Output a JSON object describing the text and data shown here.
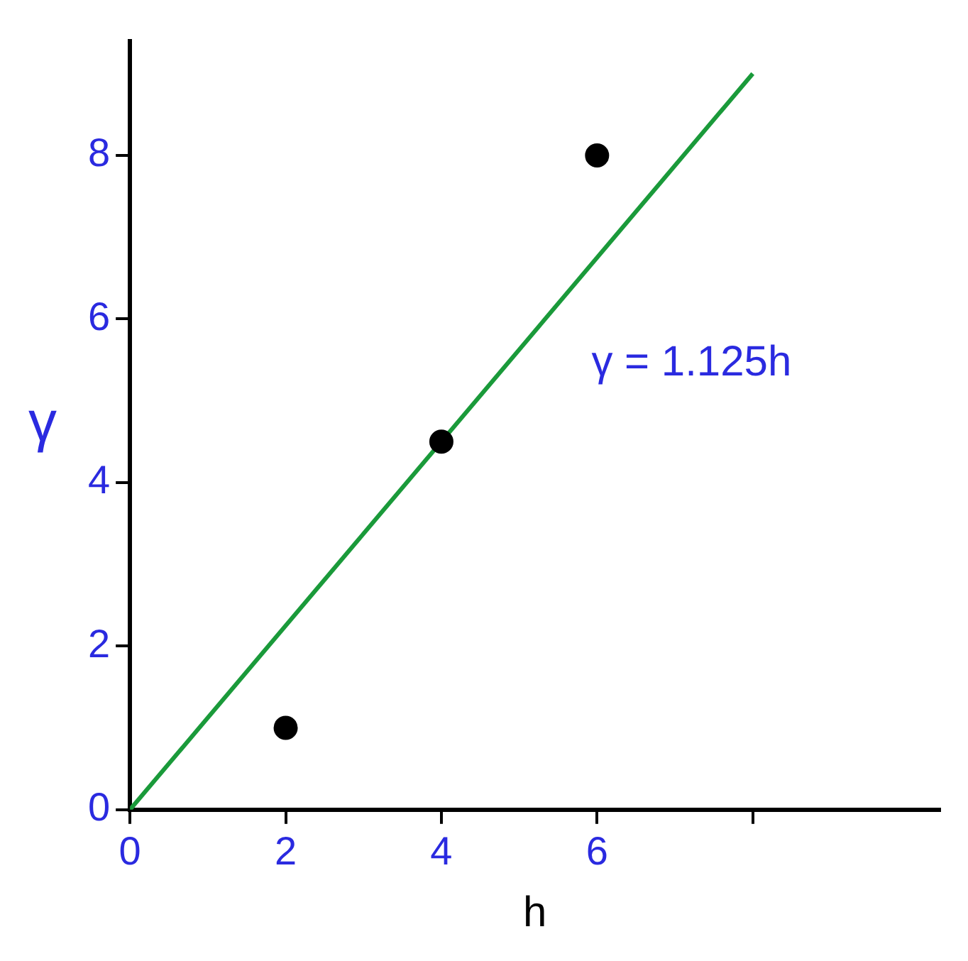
{
  "chart_data": {
    "type": "scatter",
    "xlabel": "h",
    "ylabel": "γ",
    "annotations": [
      "γ = 1.125h"
    ],
    "xlim": [
      0,
      10.4
    ],
    "ylim": [
      0,
      9.4
    ],
    "xticks": [
      0,
      2,
      4,
      6,
      {
        "value": 8,
        "label": null
      }
    ],
    "yticks": [
      0,
      2,
      4,
      6,
      8
    ],
    "grid": false,
    "legend": false,
    "series": [
      {
        "type": "scatter",
        "color": "#000000",
        "x": [
          2,
          4,
          6
        ],
        "values": [
          1,
          4.5,
          8
        ],
        "marker": "circle"
      },
      {
        "type": "line",
        "color": "#1a9a3a",
        "x": [
          0,
          8
        ],
        "values": [
          0,
          9
        ],
        "marker": "none",
        "line_style": "solid"
      }
    ]
  }
}
